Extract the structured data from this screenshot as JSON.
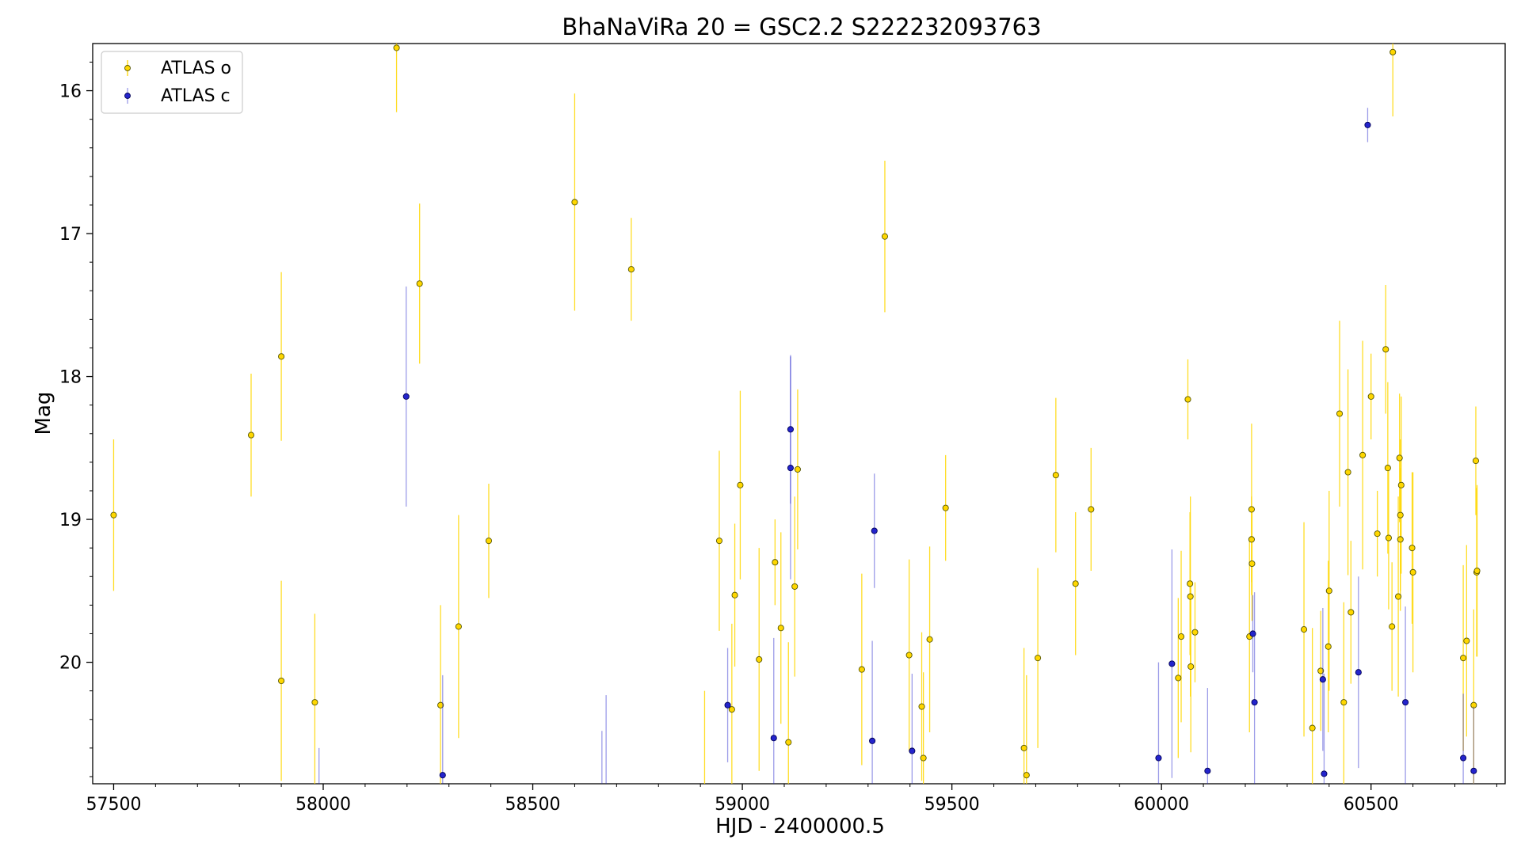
{
  "chart_data": {
    "type": "scatter",
    "title": "BhaNaViRa 20 = GSC2.2 S222232093763",
    "xlabel": "HJD - 2400000.5",
    "ylabel": "Mag",
    "xlim": [
      57450,
      60820
    ],
    "ylim": [
      20.85,
      15.67
    ],
    "y_inverted": true,
    "x_ticks": [
      57500,
      58000,
      58500,
      59000,
      59500,
      60000,
      60500
    ],
    "y_ticks": [
      16,
      17,
      18,
      19,
      20
    ],
    "legend_position": "upper-left",
    "grid": false,
    "series": [
      {
        "name": "ATLAS o",
        "color": "#ffd700",
        "edge_color": "#555500",
        "points": [
          {
            "x": 57500,
            "y": 18.97,
            "err": 0.53
          },
          {
            "x": 57828,
            "y": 18.41,
            "err": 0.43
          },
          {
            "x": 57900,
            "y": 17.86,
            "err": 0.59
          },
          {
            "x": 57900,
            "y": 20.13,
            "err": 0.7
          },
          {
            "x": 57980,
            "y": 20.28,
            "err": 0.62
          },
          {
            "x": 58175,
            "y": 15.7,
            "err": 0.45
          },
          {
            "x": 58230,
            "y": 17.35,
            "err": 0.56
          },
          {
            "x": 58280,
            "y": 20.3,
            "err": 0.7
          },
          {
            "x": 58323,
            "y": 19.75,
            "err": 0.78
          },
          {
            "x": 58395,
            "y": 19.15,
            "err": 0.4
          },
          {
            "x": 58600,
            "y": 16.78,
            "err": 0.76
          },
          {
            "x": 58735,
            "y": 17.25,
            "err": 0.36
          },
          {
            "x": 58945,
            "y": 19.15,
            "err": 0.63
          },
          {
            "x": 58975,
            "y": 20.33,
            "err": 0.6
          },
          {
            "x": 58982,
            "y": 19.53,
            "err": 0.5
          },
          {
            "x": 58995,
            "y": 18.76,
            "err": 0.66
          },
          {
            "x": 59040,
            "y": 19.98,
            "err": 0.78
          },
          {
            "x": 59078,
            "y": 19.3,
            "err": 0.3
          },
          {
            "x": 59092,
            "y": 19.76,
            "err": 0.67
          },
          {
            "x": 59110,
            "y": 20.56,
            "err": 0.7
          },
          {
            "x": 59125,
            "y": 19.47,
            "err": 0.63
          },
          {
            "x": 59132,
            "y": 18.65,
            "err": 0.56
          },
          {
            "x": 59285,
            "y": 20.05,
            "err": 0.67
          },
          {
            "x": 59340,
            "y": 17.02,
            "err": 0.53
          },
          {
            "x": 59398,
            "y": 19.95,
            "err": 0.67
          },
          {
            "x": 59428,
            "y": 20.31,
            "err": 0.52
          },
          {
            "x": 59432,
            "y": 20.67,
            "err": 0.6
          },
          {
            "x": 59447,
            "y": 19.84,
            "err": 0.65
          },
          {
            "x": 59485,
            "y": 18.92,
            "err": 0.37
          },
          {
            "x": 59672,
            "y": 20.6,
            "err": 0.7
          },
          {
            "x": 59678,
            "y": 20.79,
            "err": 0.7
          },
          {
            "x": 59705,
            "y": 19.97,
            "err": 0.63
          },
          {
            "x": 59748,
            "y": 18.69,
            "err": 0.54
          },
          {
            "x": 59795,
            "y": 19.45,
            "err": 0.5
          },
          {
            "x": 59832,
            "y": 18.93,
            "err": 0.43
          },
          {
            "x": 60040,
            "y": 20.11,
            "err": 0.56
          },
          {
            "x": 60047,
            "y": 19.82,
            "err": 0.6
          },
          {
            "x": 60063,
            "y": 18.16,
            "err": 0.28
          },
          {
            "x": 60068,
            "y": 19.45,
            "err": 0.5
          },
          {
            "x": 60069,
            "y": 19.54,
            "err": 0.7
          },
          {
            "x": 60070,
            "y": 20.03,
            "err": 0.6
          },
          {
            "x": 60080,
            "y": 19.79,
            "err": 0.35
          },
          {
            "x": 60210,
            "y": 19.82,
            "err": 0.67
          },
          {
            "x": 60215,
            "y": 18.93,
            "err": 0.6
          },
          {
            "x": 60215,
            "y": 19.14,
            "err": 0.3
          },
          {
            "x": 60216,
            "y": 19.31,
            "err": 0.4
          },
          {
            "x": 60340,
            "y": 19.77,
            "err": 0.75
          },
          {
            "x": 60360,
            "y": 20.46,
            "err": 0.7
          },
          {
            "x": 60380,
            "y": 20.06,
            "err": 0.42
          },
          {
            "x": 60398,
            "y": 19.89,
            "err": 0.6
          },
          {
            "x": 60400,
            "y": 19.5,
            "err": 0.7
          },
          {
            "x": 60425,
            "y": 18.26,
            "err": 0.65
          },
          {
            "x": 60435,
            "y": 20.28,
            "err": 0.7
          },
          {
            "x": 60445,
            "y": 18.67,
            "err": 0.72
          },
          {
            "x": 60452,
            "y": 19.65,
            "err": 0.5
          },
          {
            "x": 60480,
            "y": 18.55,
            "err": 0.8
          },
          {
            "x": 60500,
            "y": 18.14,
            "err": 0.3
          },
          {
            "x": 60515,
            "y": 19.1,
            "err": 0.3
          },
          {
            "x": 60535,
            "y": 17.81,
            "err": 0.45
          },
          {
            "x": 60540,
            "y": 18.64,
            "err": 0.6
          },
          {
            "x": 60542,
            "y": 19.13,
            "err": 0.5
          },
          {
            "x": 60550,
            "y": 19.75,
            "err": 0.45
          },
          {
            "x": 60552,
            "y": 15.73,
            "err": 0.45
          },
          {
            "x": 60565,
            "y": 19.54,
            "err": 0.7
          },
          {
            "x": 60568,
            "y": 18.57,
            "err": 0.45
          },
          {
            "x": 60570,
            "y": 18.97,
            "err": 0.53
          },
          {
            "x": 60570,
            "y": 19.14,
            "err": 0.5
          },
          {
            "x": 60572,
            "y": 18.76,
            "err": 0.62
          },
          {
            "x": 60598,
            "y": 19.2,
            "err": 0.53
          },
          {
            "x": 60600,
            "y": 19.37,
            "err": 0.7
          },
          {
            "x": 60720,
            "y": 19.97,
            "err": 0.65
          },
          {
            "x": 60728,
            "y": 19.85,
            "err": 0.67
          },
          {
            "x": 60745,
            "y": 20.3,
            "err": 0.67
          },
          {
            "x": 60750,
            "y": 18.59,
            "err": 0.38
          },
          {
            "x": 60752,
            "y": 19.37,
            "err": 0.59
          },
          {
            "x": 60753,
            "y": 19.36,
            "err": 0.6
          }
        ]
      },
      {
        "name": "ATLAS c",
        "color": "#2424cc",
        "edge_color": "#000055",
        "points": [
          {
            "x": 58198,
            "y": 18.14,
            "err": 0.77
          },
          {
            "x": 58285,
            "y": 20.79,
            "err": 0.7
          },
          {
            "x": 58965,
            "y": 20.3,
            "err": 0.4
          },
          {
            "x": 59075,
            "y": 20.53,
            "err": 0.7
          },
          {
            "x": 59115,
            "y": 18.37,
            "err": 0.52
          },
          {
            "x": 59115,
            "y": 18.64,
            "err": 0.78
          },
          {
            "x": 59310,
            "y": 20.55,
            "err": 0.7
          },
          {
            "x": 59315,
            "y": 19.08,
            "err": 0.4
          },
          {
            "x": 59405,
            "y": 20.62,
            "err": 0.54
          },
          {
            "x": 59993,
            "y": 20.67,
            "err": 0.67
          },
          {
            "x": 60025,
            "y": 20.01,
            "err": 0.8
          },
          {
            "x": 60110,
            "y": 20.76,
            "err": 0.58
          },
          {
            "x": 60218,
            "y": 19.8,
            "err": 0.27
          },
          {
            "x": 60222,
            "y": 20.28,
            "err": 0.77
          },
          {
            "x": 60385,
            "y": 20.12,
            "err": 0.5
          },
          {
            "x": 60388,
            "y": 20.78,
            "err": 0.7
          },
          {
            "x": 60470,
            "y": 20.07,
            "err": 0.67
          },
          {
            "x": 60492,
            "y": 16.24,
            "err": 0.12
          },
          {
            "x": 60582,
            "y": 20.28,
            "err": 0.67
          },
          {
            "x": 60720,
            "y": 20.67,
            "err": 0.45
          },
          {
            "x": 60745,
            "y": 20.76,
            "err": 0.45
          }
        ]
      }
    ],
    "offscreen_error_bars": [
      {
        "series": "ATLAS c",
        "x": 57990,
        "y_top": 20.6
      },
      {
        "series": "ATLAS c",
        "x": 58665,
        "y_top": 20.48
      },
      {
        "series": "ATLAS c",
        "x": 58675,
        "y_top": 20.23
      },
      {
        "series": "ATLAS o",
        "x": 58910,
        "y_top": 20.2
      }
    ]
  }
}
